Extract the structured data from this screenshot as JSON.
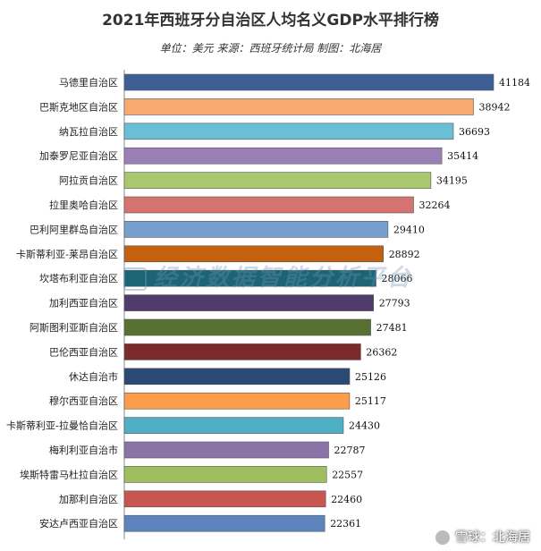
{
  "header": {
    "title": "2021年西班牙分自治区人均名义GDP水平排行榜",
    "subtitle": "单位：美元  来源：西班牙统计局  制图：北海居"
  },
  "watermark": {
    "text": "经济数据智能分析平台"
  },
  "footer": {
    "brand": "雪球：北海居"
  },
  "chart_data": {
    "type": "bar",
    "orientation": "horizontal",
    "categories": [
      "马德里自治区",
      "巴斯克地区自治区",
      "纳瓦拉自治区",
      "加泰罗尼亚自治区",
      "阿拉贡自治区",
      "拉里奥哈自治区",
      "巴利阿里群岛自治区",
      "卡斯蒂利亚-莱昂自治区",
      "坎塔布利亚自治区",
      "加利西亚自治区",
      "阿斯图利亚斯自治区",
      "巴伦西亚自治区",
      "休达自治市",
      "穆尔西亚自治区",
      "卡斯蒂利亚-拉曼恰自治区",
      "梅利利亚自治市",
      "埃斯特雷马杜拉自治区",
      "加那利自治区",
      "安达卢西亚自治区"
    ],
    "values": [
      41184,
      38942,
      36693,
      35414,
      34195,
      32264,
      29410,
      28892,
      28066,
      27793,
      27481,
      26362,
      25126,
      25117,
      24430,
      22787,
      22557,
      22460,
      22361
    ],
    "colors": [
      "#3d5f95",
      "#f8a970",
      "#6bbfd4",
      "#9b80b6",
      "#a9c76d",
      "#d4736f",
      "#769fce",
      "#c4600e",
      "#1d6474",
      "#4f3c6d",
      "#587031",
      "#7a2b2a",
      "#2b4a73",
      "#fb9d4b",
      "#4fb0c5",
      "#8a73a7",
      "#9fbe5e",
      "#c85550",
      "#5d84bd"
    ],
    "xlim": [
      0,
      41184
    ],
    "grid": false,
    "legend": "none"
  }
}
